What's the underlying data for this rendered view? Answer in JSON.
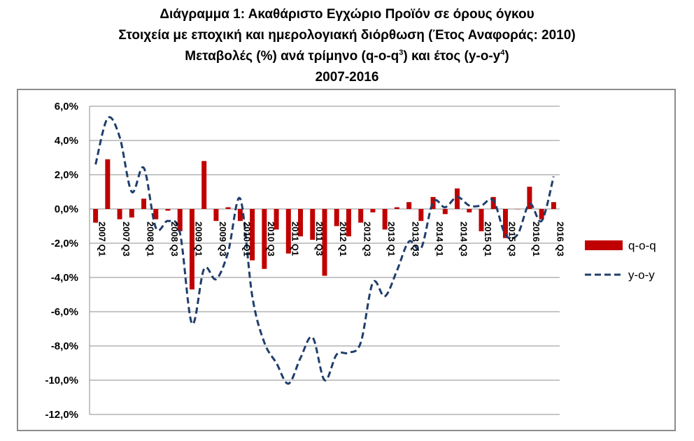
{
  "title": {
    "line1": "Διάγραμμα 1: Ακαθάριστο Εγχώριο Προϊόν σε όρους όγκου",
    "line2": "Στοιχεία με εποχική και ημερολογιακή διόρθωση (Έτος Αναφοράς: 2010)",
    "line3_pre": "Μεταβολές (%) ανά τρίμηνο (q-o-q",
    "line3_sup1": "3",
    "line3_mid": ") και έτος (y-o-y",
    "line3_sup2": "4",
    "line3_post": ")",
    "line4": "2007-2016"
  },
  "chart_data": {
    "type": "bar",
    "categories": [
      "2007 Q1",
      "2007 Q2",
      "2007 Q3",
      "2007 Q4",
      "2008 Q1",
      "2008 Q2",
      "2008 Q3",
      "2008 Q4",
      "2009 Q1",
      "2009 Q2",
      "2009 Q3",
      "2009 Q4",
      "2010 Q1",
      "2010 Q2",
      "2010 Q3",
      "2010 Q4",
      "2011 Q1",
      "2011 Q2",
      "2011 Q3",
      "2011 Q4",
      "2012 Q1",
      "2012 Q2",
      "2012 Q3",
      "2012 Q4",
      "2013 Q1",
      "2013 Q2",
      "2013 Q3",
      "2013 Q4",
      "2014 Q1",
      "2014 Q2",
      "2014 Q3",
      "2014 Q4",
      "2015 Q1",
      "2015 Q2",
      "2015 Q3",
      "2015 Q4",
      "2016 Q1",
      "2016 Q2",
      "2016 Q3"
    ],
    "tick_labels": [
      "2007 Q1",
      "2007 Q3",
      "2008 Q1",
      "2008 Q3",
      "2009 Q1",
      "2009 Q3",
      "2010 Q1",
      "2010 Q3",
      "2011 Q1",
      "2011 Q3",
      "2012 Q1",
      "2012 Q3",
      "2013 Q1",
      "2013 Q3",
      "2014 Q1",
      "2014 Q3",
      "2015 Q1",
      "2015 Q3",
      "2016 Q1",
      "2016 Q3"
    ],
    "series": [
      {
        "name": "q-o-q",
        "type": "bar",
        "color": "#c00000",
        "values": [
          -0.8,
          2.9,
          -0.6,
          -0.5,
          0.6,
          -0.6,
          -0.1,
          -1.3,
          -4.7,
          2.8,
          -0.7,
          0.1,
          -0.7,
          -3.0,
          -3.5,
          -1.2,
          -2.6,
          -1.6,
          -1.8,
          -3.9,
          -1.0,
          -1.6,
          -0.8,
          -0.2,
          -1.2,
          0.1,
          0.4,
          -0.7,
          0.7,
          -0.3,
          1.2,
          -0.2,
          -1.3,
          0.7,
          -1.7,
          0.0,
          1.3,
          -0.6,
          0.4
        ]
      },
      {
        "name": "y-o-y",
        "type": "line",
        "style": "dashed",
        "color": "#1f3e6b",
        "values": [
          2.6,
          5.3,
          4.2,
          1.0,
          2.4,
          -1.1,
          -0.7,
          -1.4,
          -6.7,
          -3.5,
          -4.1,
          -2.5,
          0.6,
          -5.1,
          -7.8,
          -9.0,
          -10.2,
          -8.7,
          -7.5,
          -10.0,
          -8.5,
          -8.4,
          -7.8,
          -4.3,
          -5.1,
          -3.6,
          -1.9,
          -2.3,
          0.4,
          0.1,
          0.7,
          0.2,
          0.2,
          0.5,
          -1.5,
          -1.5,
          0.3,
          -0.7,
          1.9
        ]
      }
    ],
    "y_ticks": [
      "6,0%",
      "4,0%",
      "2,0%",
      "0,0%",
      "-2,0%",
      "-4,0%",
      "-6,0%",
      "-8,0%",
      "-10,0%",
      "-12,0%"
    ],
    "ylim": [
      -12,
      6
    ],
    "grid": "horizontal",
    "legend_position": "right"
  }
}
